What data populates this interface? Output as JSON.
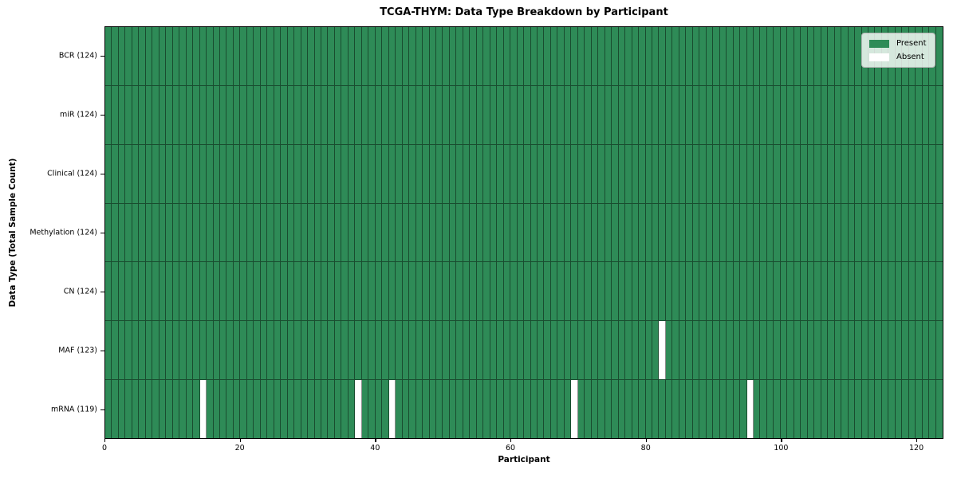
{
  "title": "TCGA-THYM: Data Type Breakdown by Participant",
  "x_axis": {
    "label": "Participant",
    "ticks": [
      0,
      20,
      40,
      60,
      80,
      100,
      120
    ],
    "max": 124
  },
  "y_axis": {
    "label": "Data Type (Total Sample Count)"
  },
  "legend": {
    "present": "Present",
    "absent": "Absent"
  },
  "colors": {
    "present": "#2e8b57",
    "absent": "#ffffff",
    "grid_line": "rgba(0,0,0,0.45)",
    "axis": "#000000",
    "legend_bg": "rgba(255,255,255,0.8)",
    "legend_border": "#b5b5b5"
  },
  "rows": [
    {
      "label": "BCR (124)",
      "name": "BCR",
      "count": 124,
      "absent": []
    },
    {
      "label": "miR (124)",
      "name": "miR",
      "count": 124,
      "absent": []
    },
    {
      "label": "Clinical (124)",
      "name": "Clinical",
      "count": 124,
      "absent": []
    },
    {
      "label": "Methylation (124)",
      "name": "Methylation",
      "count": 124,
      "absent": []
    },
    {
      "label": "CN (124)",
      "name": "CN",
      "count": 124,
      "absent": []
    },
    {
      "label": "MAF (123)",
      "name": "MAF",
      "count": 123,
      "absent": [
        82
      ]
    },
    {
      "label": "mRNA (119)",
      "name": "mRNA",
      "count": 119,
      "absent": [
        14,
        37,
        42,
        69,
        95
      ]
    }
  ],
  "chart_data": {
    "type": "heatmap",
    "title": "TCGA-THYM: Data Type Breakdown by Participant",
    "xlabel": "Participant",
    "ylabel": "Data Type (Total Sample Count)",
    "x_range": [
      0,
      124
    ],
    "x_ticks": [
      0,
      20,
      40,
      60,
      80,
      100,
      120
    ],
    "n_participants": 124,
    "rows_top_to_bottom": [
      "BCR (124)",
      "miR (124)",
      "Clinical (124)",
      "Methylation (124)",
      "CN (124)",
      "MAF (123)",
      "mRNA (119)"
    ],
    "present_counts": {
      "BCR": 124,
      "miR": 124,
      "Clinical": 124,
      "Methylation": 124,
      "CN": 124,
      "MAF": 123,
      "mRNA": 119
    },
    "absent_cells": {
      "BCR": [],
      "miR": [],
      "Clinical": [],
      "Methylation": [],
      "CN": [],
      "MAF": [
        82
      ],
      "mRNA": [
        14,
        37,
        42,
        69,
        95
      ]
    },
    "values_encoding": {
      "present": 1,
      "absent": 0
    },
    "legend": [
      "Present",
      "Absent"
    ],
    "legend_position": "upper right",
    "grid": "cell-edges-visible",
    "colors": {
      "present": "#2e8b57",
      "absent": "#ffffff"
    }
  }
}
